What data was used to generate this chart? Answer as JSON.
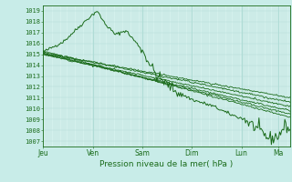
{
  "title": "",
  "xlabel": "Pression niveau de la mer( hPa )",
  "ylabel": "",
  "bg_color": "#c8ece8",
  "plot_bg_color": "#d4f0ec",
  "line_color": "#1a6b1a",
  "grid_color": "#b0dcd6",
  "ylim": [
    1006.5,
    1019.5
  ],
  "yticks": [
    1007,
    1008,
    1009,
    1010,
    1011,
    1012,
    1013,
    1014,
    1015,
    1016,
    1017,
    1018,
    1019
  ],
  "day_labels": [
    "Jeu",
    "Ven",
    "Sam",
    "Dim",
    "Lun",
    "Ma"
  ],
  "day_positions": [
    0,
    48,
    96,
    144,
    192,
    228
  ],
  "n_points": 240
}
